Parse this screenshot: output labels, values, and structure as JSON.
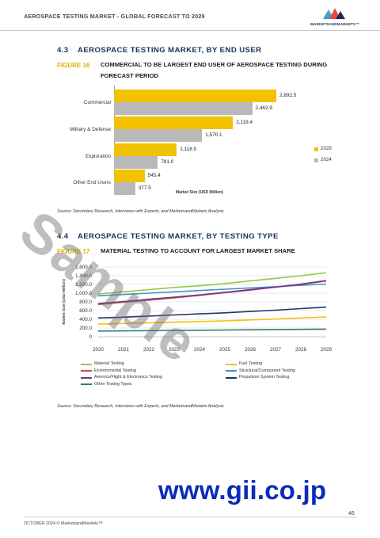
{
  "header": {
    "title": "AEROSPACE TESTING MARKET - GLOBAL FORECAST TO 2029",
    "logo_text": "MARKETSANDMARKETS™"
  },
  "section1": {
    "number": "4.3",
    "title": "AEROSPACE TESTING MARKET, BY END USER",
    "figure_label": "FIGURE 16",
    "figure_title_line1": "COMMERCIAL TO BE LARGEST END USER OF AEROSPACE TESTING DURING",
    "figure_title_line2": "FORECAST PERIOD",
    "source": "Source: Secondary Research, Interviews with Experts, and MarketsandMarkets Analysis"
  },
  "section2": {
    "number": "4.4",
    "title": "AEROSPACE TESTING MARKET, BY TESTING TYPE",
    "figure_label": "FIGURE 17",
    "figure_title": "MATERIAL TESTING TO ACCOUNT FOR LARGEST MARKET SHARE",
    "source": "Source: Secondary Research, Interviews with Experts, and MarketsandMarkets Analysis"
  },
  "chart_data": [
    {
      "type": "bar",
      "orientation": "horizontal",
      "categories": [
        "Commercial",
        "Military & Defense",
        "Exploration",
        "Other End Users"
      ],
      "series": [
        {
          "name": "2029",
          "values": [
            2892.5,
            2119.4,
            1118.5,
            545.4
          ],
          "color": "#f2c200"
        },
        {
          "name": "2024",
          "values": [
            2462.9,
            1570.1,
            781.0,
            377.5
          ],
          "color": "#b9b9b9"
        }
      ],
      "value_labels": {
        "2029": [
          "2,892.5",
          "2,119.4",
          "1,118.5",
          "545.4"
        ],
        "2024": [
          "2,462.9",
          "1,570.1",
          "781.0",
          "377.5"
        ]
      },
      "xlabel": "Market Size (USD Million)",
      "legend": "right"
    },
    {
      "type": "line",
      "x": [
        2020,
        2021,
        2022,
        2023,
        2024,
        2025,
        2026,
        2027,
        2028,
        2029
      ],
      "ylabel": "Market Size (USD Million)",
      "yticks": [
        "0",
        "200.0",
        "400.0",
        "600.0",
        "800.0",
        "1,000.0",
        "1,200.0",
        "1,400.0",
        "1,600.0"
      ],
      "ylim": [
        0,
        1600
      ],
      "grid": true,
      "legend": "bottom",
      "series": [
        {
          "name": "Material Testing",
          "color": "#92c94c",
          "values": [
            980,
            1030,
            1080,
            1130,
            1170,
            1220,
            1280,
            1340,
            1400,
            1470
          ]
        },
        {
          "name": "Fuel Testing",
          "color": "#f4c20d",
          "values": [
            290,
            305,
            320,
            335,
            350,
            365,
            385,
            405,
            430,
            455
          ]
        },
        {
          "name": "Environmental Testing",
          "color": "#c0504d",
          "values": [
            740,
            790,
            840,
            890,
            950,
            1010,
            1070,
            1140,
            1210,
            1290
          ]
        },
        {
          "name": "Structural/Component Testing",
          "color": "#4a90c8",
          "values": [
            940,
            970,
            1000,
            1030,
            1060,
            1090,
            1120,
            1150,
            1180,
            1210
          ]
        },
        {
          "name": "Avionics/Flight & Electronics Testing",
          "color": "#6b3a8a",
          "values": [
            760,
            810,
            860,
            910,
            960,
            1020,
            1080,
            1140,
            1200,
            1280
          ]
        },
        {
          "name": "Propulsion System Testing",
          "color": "#1f3864",
          "values": [
            430,
            450,
            475,
            500,
            525,
            550,
            580,
            610,
            645,
            680
          ]
        },
        {
          "name": "Other Testing Types",
          "color": "#2e7d73",
          "values": [
            130,
            135,
            140,
            145,
            150,
            155,
            160,
            165,
            170,
            175
          ]
        }
      ]
    }
  ],
  "watermark": "Sample",
  "site_url": "www.gii.co.jp",
  "footer": {
    "text": "OCTOBER 2024 © MarketsandMarkets™",
    "page_number": "46"
  }
}
